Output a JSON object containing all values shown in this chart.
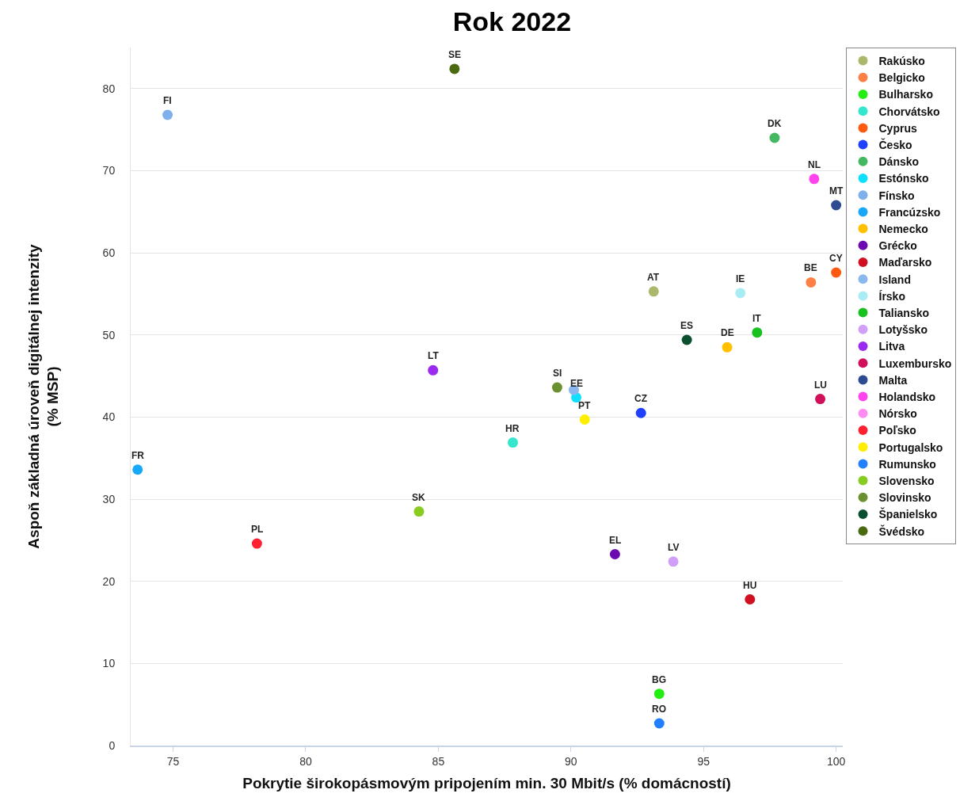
{
  "chart_data": {
    "type": "scatter",
    "title": "Rok 2022",
    "xlabel": "Pokrytie širokopásmovým pripojením min. 30 Mbit/s (% domácností)",
    "ylabel": "Aspoň základná úroveň digitálnej intenzity\n(% MSP)",
    "xlim": [
      73.4,
      100.25
    ],
    "xticks": [
      75,
      80,
      85,
      90,
      95,
      100
    ],
    "ylim": [
      0,
      85
    ],
    "yticks": [
      0,
      10,
      20,
      30,
      40,
      50,
      60,
      70,
      80
    ],
    "grid": "y",
    "legend": "right",
    "marker": "circle",
    "series": [
      {
        "name": "Rakúsko",
        "color": "#a9b86a",
        "x": [
          93.12
        ],
        "values": [
          55.3
        ]
      },
      {
        "name": "Belgicko",
        "color": "#ff8046",
        "x": [
          99.05
        ],
        "values": [
          56.4
        ]
      },
      {
        "name": "Bulharsko",
        "color": "#22ee11",
        "x": [
          93.33
        ],
        "values": [
          6.3
        ]
      },
      {
        "name": "Chorvátsko",
        "color": "#33e6cc",
        "x": [
          87.81
        ],
        "values": [
          36.9
        ]
      },
      {
        "name": "Cyprus",
        "color": "#ff5a10",
        "x": [
          100
        ],
        "values": [
          57.6
        ]
      },
      {
        "name": "Česko",
        "color": "#1f40ff",
        "x": [
          92.64
        ],
        "values": [
          40.5
        ]
      },
      {
        "name": "Dánsko",
        "color": "#44b860",
        "x": [
          97.68
        ],
        "values": [
          74.0
        ]
      },
      {
        "name": "Estónsko",
        "color": "#10e0ff",
        "x": [
          90.2
        ],
        "values": [
          42.4
        ]
      },
      {
        "name": "Fínsko",
        "color": "#80b0ec",
        "x": [
          74.79
        ],
        "values": [
          76.8
        ]
      },
      {
        "name": "Francúzsko",
        "color": "#18a8f8",
        "x": [
          73.66
        ],
        "values": [
          33.6
        ]
      },
      {
        "name": "Nemecko",
        "color": "#ffc000",
        "x": [
          95.89
        ],
        "values": [
          48.5
        ]
      },
      {
        "name": "Grécko",
        "color": "#6a0ab0",
        "x": [
          91.66
        ],
        "values": [
          23.3
        ]
      },
      {
        "name": "Maďarsko",
        "color": "#d01020",
        "x": [
          96.75
        ],
        "values": [
          17.8
        ]
      },
      {
        "name": "Island",
        "color": "#8ab8ee",
        "x": [
          90.11
        ],
        "values": [
          43.3
        ]
      },
      {
        "name": "Írsko",
        "color": "#a8ecf4",
        "x": [
          96.39
        ],
        "values": [
          55.1
        ]
      },
      {
        "name": "Taliansko",
        "color": "#18c020",
        "x": [
          97.02
        ],
        "values": [
          50.3
        ]
      },
      {
        "name": "Lotyšsko",
        "color": "#d0a0f8",
        "x": [
          93.86
        ],
        "values": [
          22.4
        ]
      },
      {
        "name": "Litva",
        "color": "#9a2af0",
        "x": [
          84.8
        ],
        "values": [
          45.7
        ]
      },
      {
        "name": "Luxembursko",
        "color": "#d0105a",
        "x": [
          99.4
        ],
        "values": [
          42.2
        ]
      },
      {
        "name": "Malta",
        "color": "#2e4a90",
        "x": [
          100
        ],
        "values": [
          65.8
        ]
      },
      {
        "name": "Holandsko",
        "color": "#ff44ee",
        "x": [
          99.17
        ],
        "values": [
          69.0
        ]
      },
      {
        "name": "Nórsko",
        "color": "#ff8cf0",
        "x": [
          null
        ],
        "values": [
          null
        ]
      },
      {
        "name": "Poľsko",
        "color": "#ff2030",
        "x": [
          78.16
        ],
        "values": [
          24.6
        ]
      },
      {
        "name": "Portugalsko",
        "color": "#ffee00",
        "x": [
          90.52
        ],
        "values": [
          39.7
        ]
      },
      {
        "name": "Rumunsko",
        "color": "#2080ff",
        "x": [
          93.33
        ],
        "values": [
          2.7
        ]
      },
      {
        "name": "Slovensko",
        "color": "#88cc20",
        "x": [
          84.27
        ],
        "values": [
          28.5
        ]
      },
      {
        "name": "Slovinsko",
        "color": "#6a9030",
        "x": [
          89.48
        ],
        "values": [
          43.6
        ]
      },
      {
        "name": "Španielsko",
        "color": "#0a5030",
        "x": [
          94.37
        ],
        "values": [
          49.4
        ]
      },
      {
        "name": "Švédsko",
        "color": "#4a6a10",
        "x": [
          85.61
        ],
        "values": [
          82.4
        ]
      }
    ],
    "annotations": [
      {
        "text": "SE",
        "x": 85.61,
        "y": 82.4
      },
      {
        "text": "FI",
        "x": 74.79,
        "y": 76.8
      },
      {
        "text": "DK",
        "x": 97.68,
        "y": 74.0
      },
      {
        "text": "NL",
        "x": 99.17,
        "y": 69.0
      },
      {
        "text": "MT",
        "x": 100,
        "y": 65.8
      },
      {
        "text": "BE",
        "x": 99.05,
        "y": 56.4
      },
      {
        "text": "CY",
        "x": 100,
        "y": 57.6
      },
      {
        "text": "AT",
        "x": 93.12,
        "y": 55.3
      },
      {
        "text": "IE",
        "x": 96.39,
        "y": 55.1
      },
      {
        "text": "IT",
        "x": 97.02,
        "y": 50.3
      },
      {
        "text": "ES",
        "x": 94.37,
        "y": 49.4
      },
      {
        "text": "DE",
        "x": 95.89,
        "y": 48.5
      },
      {
        "text": "LT",
        "x": 84.8,
        "y": 45.7
      },
      {
        "text": "SI",
        "x": 89.48,
        "y": 43.6
      },
      {
        "text": "EE",
        "x": 90.2,
        "y": 42.4
      },
      {
        "text": "PT",
        "x": 90.52,
        "y": 39.7
      },
      {
        "text": "CZ",
        "x": 92.64,
        "y": 40.5
      },
      {
        "text": "LU",
        "x": 99.4,
        "y": 42.2
      },
      {
        "text": "HR",
        "x": 87.81,
        "y": 36.9
      },
      {
        "text": "FR",
        "x": 73.66,
        "y": 33.6
      },
      {
        "text": "SK",
        "x": 84.27,
        "y": 28.5
      },
      {
        "text": "PL",
        "x": 78.16,
        "y": 24.6
      },
      {
        "text": "EL",
        "x": 91.66,
        "y": 23.3
      },
      {
        "text": "LV",
        "x": 93.86,
        "y": 22.4
      },
      {
        "text": "HU",
        "x": 96.75,
        "y": 17.8
      },
      {
        "text": "BG",
        "x": 93.33,
        "y": 6.3
      },
      {
        "text": "RO",
        "x": 93.33,
        "y": 2.7
      }
    ]
  }
}
